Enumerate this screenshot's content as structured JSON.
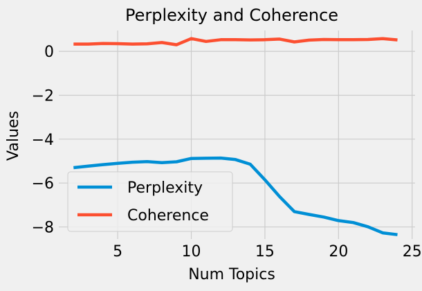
{
  "chart_data": {
    "type": "line",
    "title": "Perplexity and Coherence",
    "xlabel": "Num Topics",
    "ylabel": "Values",
    "xlim": [
      1.0,
      25.2
    ],
    "ylim": [
      -8.55,
      0.95
    ],
    "xticks": [
      5,
      10,
      15,
      20,
      25
    ],
    "yticks": [
      0,
      -2,
      -4,
      -6,
      -8
    ],
    "ytick_labels": [
      "0",
      "−2",
      "−4",
      "−6",
      "−8"
    ],
    "grid": true,
    "legend_position": "lower-left",
    "x": [
      2,
      3,
      4,
      5,
      6,
      7,
      8,
      9,
      10,
      11,
      12,
      13,
      14,
      15,
      16,
      17,
      18,
      19,
      20,
      21,
      22,
      23,
      24
    ],
    "series": [
      {
        "name": "Perplexity",
        "color": "#008fd5",
        "values": [
          -5.3,
          -5.23,
          -5.16,
          -5.1,
          -5.05,
          -5.02,
          -5.07,
          -5.03,
          -4.88,
          -4.87,
          -4.86,
          -4.93,
          -5.14,
          -5.85,
          -6.62,
          -7.3,
          -7.43,
          -7.55,
          -7.71,
          -7.8,
          -7.99,
          -8.27,
          -8.35
        ]
      },
      {
        "name": "Coherence",
        "color": "#fc4f30",
        "values": [
          0.33,
          0.33,
          0.36,
          0.35,
          0.33,
          0.34,
          0.4,
          0.3,
          0.58,
          0.45,
          0.53,
          0.53,
          0.52,
          0.53,
          0.56,
          0.43,
          0.51,
          0.54,
          0.53,
          0.53,
          0.54,
          0.58,
          0.52
        ]
      }
    ]
  }
}
